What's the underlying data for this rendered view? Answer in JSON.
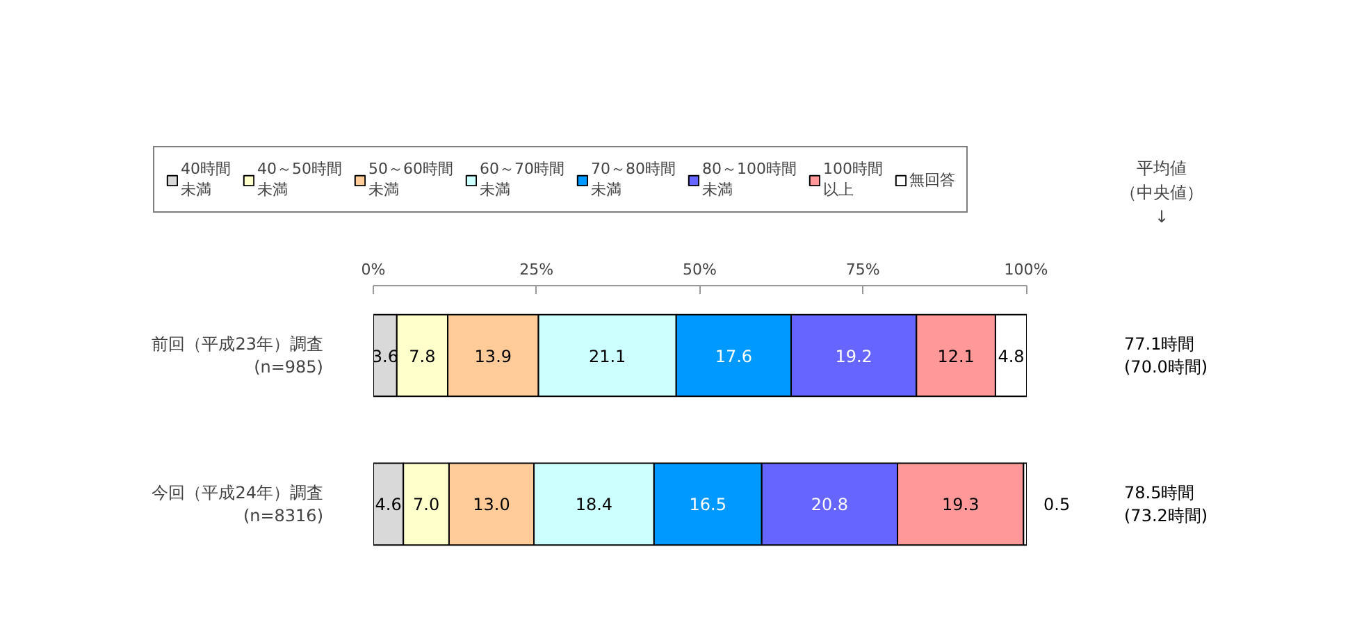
{
  "chart_data": {
    "type": "bar",
    "orientation": "horizontal",
    "stacked": true,
    "categories": [
      "前回（平成23年）調査\n(n=985)",
      "今回（平成24年）調査\n(n=8316)"
    ],
    "series": [
      {
        "name": "40時間未満",
        "color": "#d9d9d9",
        "values": [
          3.6,
          4.6
        ],
        "value_labels": [
          "3.6",
          "4.6"
        ]
      },
      {
        "name": "40～50時間未満",
        "color": "#ffffcc",
        "values": [
          7.8,
          7.0
        ],
        "value_labels": [
          "7.8",
          "7.0"
        ]
      },
      {
        "name": "50～60時間未満",
        "color": "#ffcc99",
        "values": [
          13.9,
          13.0
        ],
        "value_labels": [
          "13.9",
          "13.0"
        ]
      },
      {
        "name": "60～70時間未満",
        "color": "#ccffff",
        "values": [
          21.1,
          18.4
        ],
        "value_labels": [
          "21.1",
          "18.4"
        ]
      },
      {
        "name": "70～80時間未満",
        "color": "#0099ff",
        "values": [
          17.6,
          16.5
        ],
        "value_labels": [
          "17.6",
          "16.5"
        ]
      },
      {
        "name": "80～100時間未満",
        "color": "#6666ff",
        "values": [
          19.2,
          20.8
        ],
        "value_labels": [
          "19.2",
          "20.8"
        ]
      },
      {
        "name": "100時間以上",
        "color": "#ff9999",
        "values": [
          12.1,
          19.3
        ],
        "value_labels": [
          "12.1",
          "19.3"
        ]
      },
      {
        "name": "無回答",
        "color": "#ffffff",
        "values": [
          4.8,
          0.5
        ],
        "value_labels": [
          "4.8",
          "0.5"
        ]
      }
    ],
    "xlim": [
      0,
      100.1
    ],
    "xticks": [
      {
        "value": 0,
        "label": "0%"
      },
      {
        "value": 25,
        "label": "25%"
      },
      {
        "value": 50,
        "label": "50%"
      },
      {
        "value": 75,
        "label": "75%"
      },
      {
        "value": 100,
        "label": "100%"
      }
    ],
    "grid": false,
    "legend": "top",
    "annotations": [
      "平均値（中央値）↓",
      "77.1時間\n(70.0時間)",
      "78.5時間\n(73.2時間)"
    ]
  }
}
